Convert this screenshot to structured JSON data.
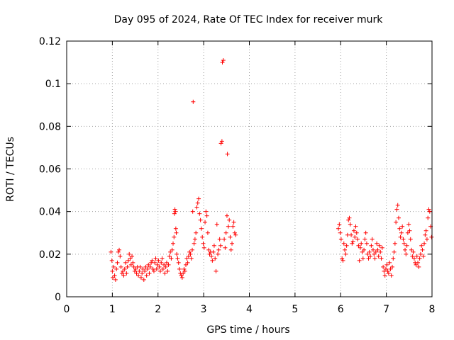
{
  "chart_data": {
    "type": "scatter",
    "title": "Day 095 of 2024, Rate Of TEC Index for receiver murk",
    "xlabel": "GPS time / hours",
    "ylabel": "ROTI / TECUs",
    "xlim": [
      0,
      8
    ],
    "ylim": [
      0,
      0.12
    ],
    "xticks": [
      0,
      1,
      2,
      3,
      4,
      5,
      6,
      7,
      8
    ],
    "yticks": [
      0,
      0.02,
      0.04,
      0.06,
      0.08,
      0.1,
      0.12
    ],
    "xtick_labels": [
      "0",
      "1",
      "2",
      "3",
      "4",
      "5",
      "6",
      "7",
      "8"
    ],
    "ytick_labels": [
      "0",
      "0.02",
      "0.04",
      "0.06",
      "0.08",
      "0.1",
      "0.12"
    ],
    "grid": true,
    "marker": "+",
    "color": "#ff0000",
    "series": [
      {
        "name": "ROTI",
        "points": [
          [
            0.97,
            0.021
          ],
          [
            0.99,
            0.017
          ],
          [
            1.0,
            0.012
          ],
          [
            1.01,
            0.009
          ],
          [
            1.03,
            0.014
          ],
          [
            1.05,
            0.01
          ],
          [
            1.07,
            0.008
          ],
          [
            1.09,
            0.013
          ],
          [
            1.11,
            0.016
          ],
          [
            1.13,
            0.021
          ],
          [
            1.15,
            0.022
          ],
          [
            1.17,
            0.019
          ],
          [
            1.19,
            0.014
          ],
          [
            1.21,
            0.011
          ],
          [
            1.23,
            0.012
          ],
          [
            1.25,
            0.01
          ],
          [
            1.27,
            0.013
          ],
          [
            1.29,
            0.016
          ],
          [
            1.31,
            0.011
          ],
          [
            1.33,
            0.014
          ],
          [
            1.35,
            0.017
          ],
          [
            1.37,
            0.02
          ],
          [
            1.39,
            0.018
          ],
          [
            1.41,
            0.015
          ],
          [
            1.43,
            0.019
          ],
          [
            1.45,
            0.016
          ],
          [
            1.47,
            0.014
          ],
          [
            1.49,
            0.012
          ],
          [
            1.51,
            0.013
          ],
          [
            1.53,
            0.011
          ],
          [
            1.55,
            0.014
          ],
          [
            1.57,
            0.01
          ],
          [
            1.59,
            0.012
          ],
          [
            1.61,
            0.014
          ],
          [
            1.63,
            0.009
          ],
          [
            1.65,
            0.011
          ],
          [
            1.67,
            0.013
          ],
          [
            1.69,
            0.008
          ],
          [
            1.71,
            0.012
          ],
          [
            1.73,
            0.014
          ],
          [
            1.75,
            0.01
          ],
          [
            1.77,
            0.013
          ],
          [
            1.79,
            0.015
          ],
          [
            1.81,
            0.011
          ],
          [
            1.83,
            0.014
          ],
          [
            1.85,
            0.016
          ],
          [
            1.87,
            0.017
          ],
          [
            1.89,
            0.013
          ],
          [
            1.91,
            0.012
          ],
          [
            1.93,
            0.016
          ],
          [
            1.95,
            0.018
          ],
          [
            1.97,
            0.013
          ],
          [
            1.99,
            0.015
          ],
          [
            2.01,
            0.017
          ],
          [
            2.03,
            0.014
          ],
          [
            2.05,
            0.012
          ],
          [
            2.07,
            0.016
          ],
          [
            2.09,
            0.018
          ],
          [
            2.11,
            0.013
          ],
          [
            2.13,
            0.015
          ],
          [
            2.15,
            0.011
          ],
          [
            2.17,
            0.014
          ],
          [
            2.19,
            0.016
          ],
          [
            2.21,
            0.012
          ],
          [
            2.23,
            0.015
          ],
          [
            2.25,
            0.019
          ],
          [
            2.27,
            0.021
          ],
          [
            2.29,
            0.018
          ],
          [
            2.31,
            0.022
          ],
          [
            2.33,
            0.025
          ],
          [
            2.35,
            0.028
          ],
          [
            2.36,
            0.039
          ],
          [
            2.37,
            0.041
          ],
          [
            2.38,
            0.04
          ],
          [
            2.39,
            0.032
          ],
          [
            2.4,
            0.03
          ],
          [
            2.41,
            0.02
          ],
          [
            2.43,
            0.018
          ],
          [
            2.45,
            0.016
          ],
          [
            2.47,
            0.013
          ],
          [
            2.49,
            0.011
          ],
          [
            2.51,
            0.01
          ],
          [
            2.53,
            0.009
          ],
          [
            2.55,
            0.011
          ],
          [
            2.57,
            0.013
          ],
          [
            2.59,
            0.012
          ],
          [
            2.61,
            0.015
          ],
          [
            2.63,
            0.018
          ],
          [
            2.65,
            0.016
          ],
          [
            2.67,
            0.019
          ],
          [
            2.69,
            0.021
          ],
          [
            2.71,
            0.02
          ],
          [
            2.73,
            0.018
          ],
          [
            2.75,
            0.022
          ],
          [
            2.76,
            0.04
          ],
          [
            2.77,
            0.0915
          ],
          [
            2.79,
            0.025
          ],
          [
            2.81,
            0.027
          ],
          [
            2.83,
            0.03
          ],
          [
            2.85,
            0.042
          ],
          [
            2.87,
            0.044
          ],
          [
            2.89,
            0.046
          ],
          [
            2.91,
            0.039
          ],
          [
            2.93,
            0.036
          ],
          [
            2.95,
            0.032
          ],
          [
            2.97,
            0.028
          ],
          [
            2.99,
            0.025
          ],
          [
            3.01,
            0.023
          ],
          [
            3.03,
            0.035
          ],
          [
            3.05,
            0.04
          ],
          [
            3.07,
            0.038
          ],
          [
            3.09,
            0.03
          ],
          [
            3.11,
            0.022
          ],
          [
            3.13,
            0.02
          ],
          [
            3.15,
            0.021
          ],
          [
            3.17,
            0.019
          ],
          [
            3.19,
            0.017
          ],
          [
            3.21,
            0.021
          ],
          [
            3.23,
            0.024
          ],
          [
            3.25,
            0.018
          ],
          [
            3.27,
            0.012
          ],
          [
            3.29,
            0.034
          ],
          [
            3.31,
            0.02
          ],
          [
            3.33,
            0.022
          ],
          [
            3.35,
            0.027
          ],
          [
            3.37,
            0.024
          ],
          [
            3.38,
            0.072
          ],
          [
            3.4,
            0.073
          ],
          [
            3.41,
            0.11
          ],
          [
            3.43,
            0.111
          ],
          [
            3.45,
            0.027
          ],
          [
            3.47,
            0.023
          ],
          [
            3.49,
            0.03
          ],
          [
            3.51,
            0.038
          ],
          [
            3.52,
            0.067
          ],
          [
            3.54,
            0.033
          ],
          [
            3.56,
            0.036
          ],
          [
            3.58,
            0.028
          ],
          [
            3.6,
            0.022
          ],
          [
            3.62,
            0.025
          ],
          [
            3.64,
            0.033
          ],
          [
            3.66,
            0.035
          ],
          [
            3.68,
            0.03
          ],
          [
            3.7,
            0.029
          ],
          [
            5.95,
            0.032
          ],
          [
            5.97,
            0.034
          ],
          [
            5.99,
            0.03
          ],
          [
            6.01,
            0.027
          ],
          [
            6.03,
            0.018
          ],
          [
            6.05,
            0.017
          ],
          [
            6.07,
            0.025
          ],
          [
            6.09,
            0.022
          ],
          [
            6.11,
            0.02
          ],
          [
            6.13,
            0.024
          ],
          [
            6.15,
            0.029
          ],
          [
            6.17,
            0.036
          ],
          [
            6.19,
            0.037
          ],
          [
            6.21,
            0.034
          ],
          [
            6.23,
            0.029
          ],
          [
            6.25,
            0.025
          ],
          [
            6.27,
            0.026
          ],
          [
            6.29,
            0.031
          ],
          [
            6.31,
            0.028
          ],
          [
            6.33,
            0.033
          ],
          [
            6.35,
            0.03
          ],
          [
            6.37,
            0.027
          ],
          [
            6.39,
            0.024
          ],
          [
            6.41,
            0.017
          ],
          [
            6.43,
            0.023
          ],
          [
            6.45,
            0.025
          ],
          [
            6.47,
            0.021
          ],
          [
            6.49,
            0.018
          ],
          [
            6.51,
            0.022
          ],
          [
            6.53,
            0.027
          ],
          [
            6.55,
            0.03
          ],
          [
            6.57,
            0.025
          ],
          [
            6.59,
            0.02
          ],
          [
            6.61,
            0.018
          ],
          [
            6.63,
            0.021
          ],
          [
            6.65,
            0.019
          ],
          [
            6.67,
            0.024
          ],
          [
            6.69,
            0.027
          ],
          [
            6.71,
            0.022
          ],
          [
            6.73,
            0.02
          ],
          [
            6.75,
            0.018
          ],
          [
            6.77,
            0.021
          ],
          [
            6.79,
            0.025
          ],
          [
            6.81,
            0.022
          ],
          [
            6.83,
            0.019
          ],
          [
            6.85,
            0.024
          ],
          [
            6.87,
            0.021
          ],
          [
            6.89,
            0.018
          ],
          [
            6.91,
            0.023
          ],
          [
            6.93,
            0.014
          ],
          [
            6.95,
            0.012
          ],
          [
            6.97,
            0.01
          ],
          [
            6.99,
            0.013
          ],
          [
            7.01,
            0.015
          ],
          [
            7.03,
            0.012
          ],
          [
            7.05,
            0.011
          ],
          [
            7.07,
            0.016
          ],
          [
            7.09,
            0.013
          ],
          [
            7.11,
            0.01
          ],
          [
            7.13,
            0.014
          ],
          [
            7.15,
            0.018
          ],
          [
            7.17,
            0.021
          ],
          [
            7.19,
            0.025
          ],
          [
            7.21,
            0.035
          ],
          [
            7.23,
            0.041
          ],
          [
            7.25,
            0.043
          ],
          [
            7.27,
            0.037
          ],
          [
            7.29,
            0.032
          ],
          [
            7.31,
            0.028
          ],
          [
            7.33,
            0.03
          ],
          [
            7.35,
            0.033
          ],
          [
            7.37,
            0.027
          ],
          [
            7.39,
            0.025
          ],
          [
            7.41,
            0.022
          ],
          [
            7.43,
            0.02
          ],
          [
            7.45,
            0.024
          ],
          [
            7.47,
            0.03
          ],
          [
            7.49,
            0.034
          ],
          [
            7.51,
            0.031
          ],
          [
            7.53,
            0.027
          ],
          [
            7.55,
            0.022
          ],
          [
            7.57,
            0.019
          ],
          [
            7.59,
            0.021
          ],
          [
            7.61,
            0.018
          ],
          [
            7.63,
            0.016
          ],
          [
            7.65,
            0.015
          ],
          [
            7.67,
            0.019
          ],
          [
            7.69,
            0.016
          ],
          [
            7.71,
            0.014
          ],
          [
            7.73,
            0.018
          ],
          [
            7.75,
            0.02
          ],
          [
            7.77,
            0.024
          ],
          [
            7.79,
            0.022
          ],
          [
            7.81,
            0.019
          ],
          [
            7.83,
            0.025
          ],
          [
            7.85,
            0.029
          ],
          [
            7.87,
            0.031
          ],
          [
            7.89,
            0.027
          ],
          [
            7.91,
            0.037
          ],
          [
            7.93,
            0.041
          ],
          [
            7.95,
            0.04
          ],
          [
            7.97,
            0.033
          ],
          [
            7.99,
            0.028
          ]
        ]
      }
    ]
  }
}
